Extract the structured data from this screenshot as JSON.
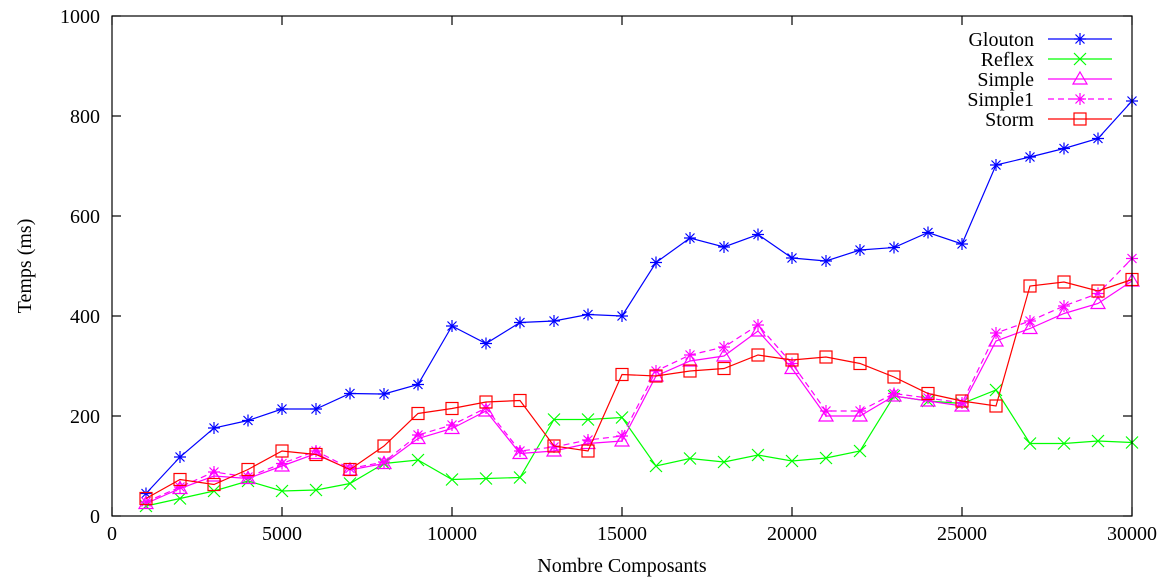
{
  "chart_data": {
    "type": "line",
    "title": "",
    "xlabel": "Nombre Composants",
    "ylabel": "Temps (ms)",
    "xlim": [
      0,
      30000
    ],
    "ylim": [
      0,
      1000
    ],
    "xticks": [
      0,
      5000,
      10000,
      15000,
      20000,
      25000,
      30000
    ],
    "yticks": [
      0,
      200,
      400,
      600,
      800,
      1000
    ],
    "grid": false,
    "legend_position": "top-right",
    "x": [
      1000,
      2000,
      3000,
      4000,
      5000,
      6000,
      7000,
      8000,
      9000,
      10000,
      11000,
      12000,
      13000,
      14000,
      15000,
      16000,
      17000,
      18000,
      19000,
      20000,
      21000,
      22000,
      23000,
      24000,
      25000,
      26000,
      27000,
      28000,
      29000,
      30000
    ],
    "series": [
      {
        "name": "Glouton",
        "color": "#0000ff",
        "marker": "asterisk",
        "dash": "solid",
        "values": [
          45,
          118,
          176,
          191,
          214,
          214,
          245,
          244,
          263,
          380,
          345,
          387,
          390,
          403,
          400,
          507,
          556,
          538,
          563,
          516,
          510,
          532,
          537,
          567,
          544,
          702,
          718,
          735,
          755,
          830
        ]
      },
      {
        "name": "Reflex",
        "color": "#00ff00",
        "marker": "x",
        "dash": "solid",
        "values": [
          20,
          35,
          50,
          70,
          50,
          52,
          65,
          105,
          112,
          73,
          75,
          77,
          193,
          193,
          197,
          100,
          115,
          108,
          122,
          110,
          116,
          130,
          240,
          230,
          225,
          252,
          145,
          145,
          150,
          147
        ]
      },
      {
        "name": "Simple",
        "color": "#ff00ff",
        "marker": "triangle",
        "dash": "solid",
        "values": [
          25,
          55,
          80,
          75,
          100,
          125,
          92,
          105,
          155,
          175,
          210,
          125,
          130,
          145,
          150,
          280,
          310,
          320,
          370,
          295,
          200,
          200,
          240,
          230,
          220,
          350,
          375,
          405,
          425,
          470
        ]
      },
      {
        "name": "Simple1",
        "color": "#ff00ff",
        "marker": "asterisk",
        "dash": "dashed",
        "values": [
          28,
          58,
          88,
          78,
          105,
          130,
          95,
          108,
          162,
          182,
          216,
          130,
          138,
          152,
          160,
          290,
          322,
          338,
          382,
          305,
          210,
          210,
          245,
          236,
          226,
          366,
          390,
          420,
          445,
          515
        ]
      },
      {
        "name": "Storm",
        "color": "#ff0000",
        "marker": "square",
        "dash": "solid",
        "values": [
          35,
          73,
          63,
          93,
          130,
          123,
          93,
          140,
          205,
          215,
          228,
          231,
          140,
          130,
          283,
          280,
          290,
          295,
          322,
          312,
          318,
          305,
          278,
          245,
          230,
          220,
          460,
          468,
          450,
          473
        ]
      }
    ]
  }
}
